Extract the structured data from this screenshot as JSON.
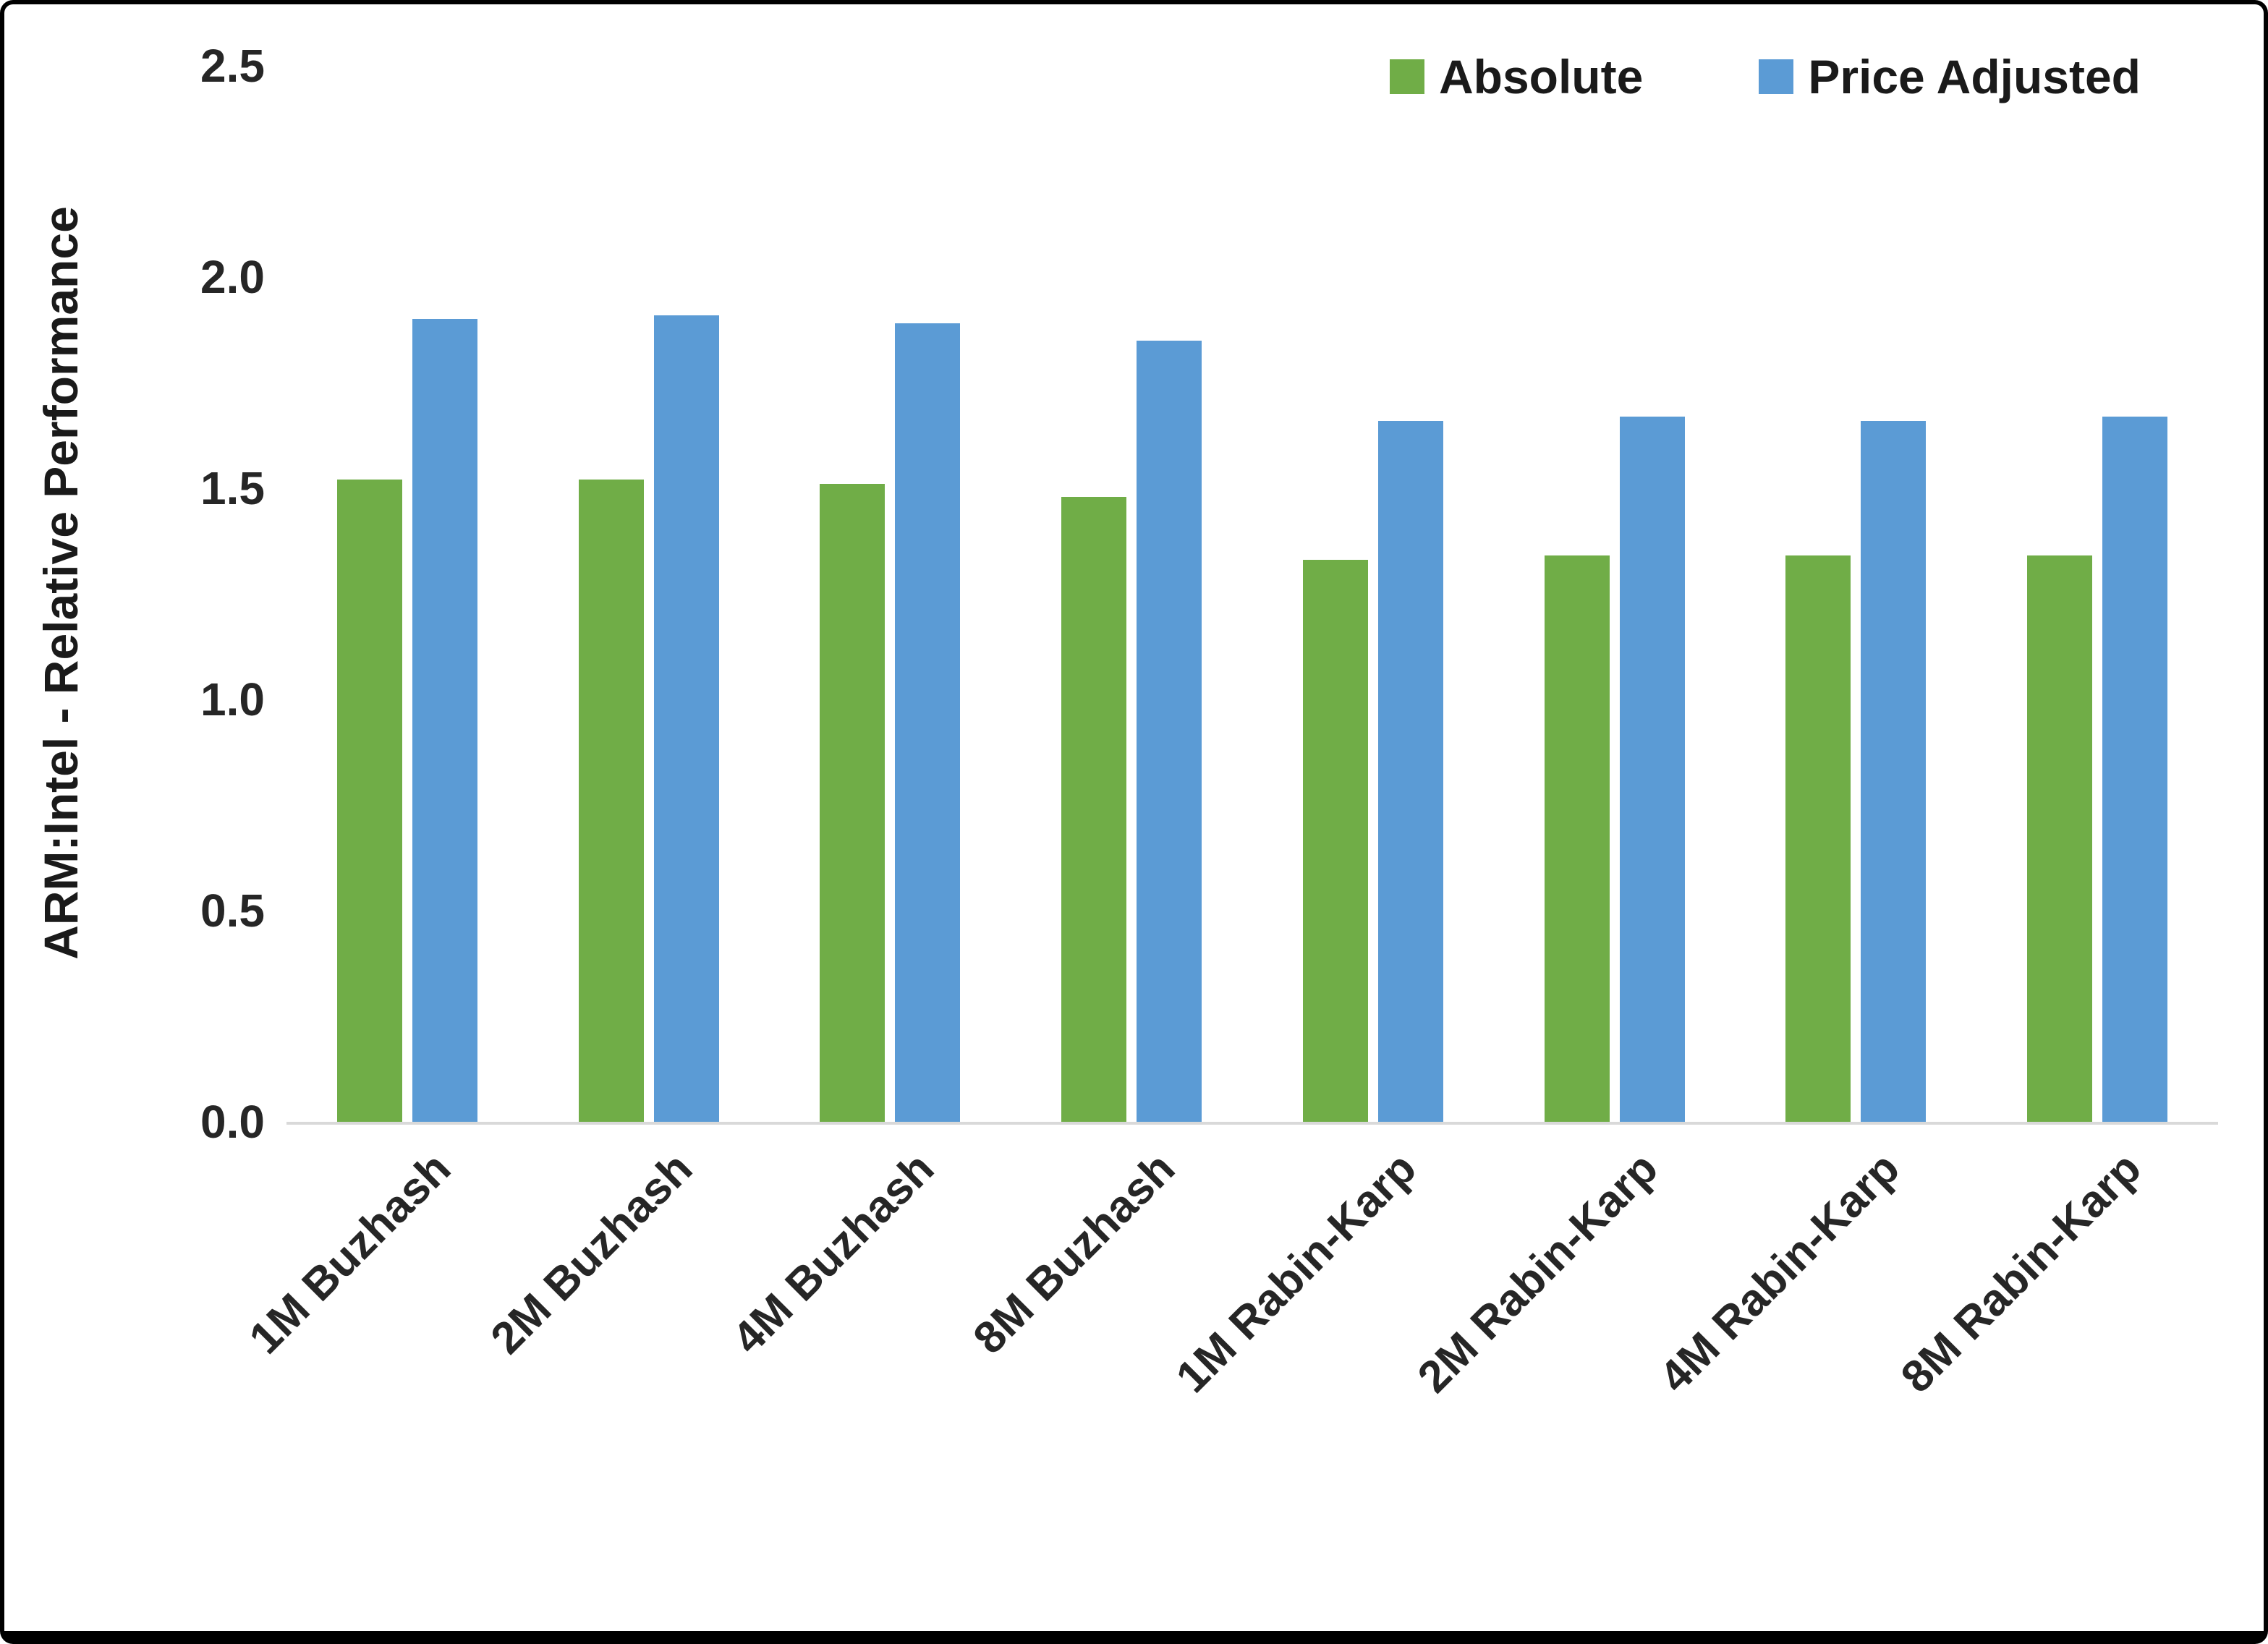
{
  "figure": {
    "background": "#ffffff",
    "border_color": "#000000"
  },
  "chart_data": {
    "type": "bar",
    "title": "",
    "xlabel": "",
    "ylabel": "ARM:Intel - Relative Performance",
    "ylim": [
      0,
      2.5
    ],
    "ytick_values": [
      0,
      0.5,
      1.0,
      1.5,
      2.0,
      2.5
    ],
    "ytick_labels": [
      "0.0",
      "0.5",
      "1.0",
      "1.5",
      "2.0",
      "2.5"
    ],
    "grid": false,
    "legend_position": "top-right",
    "axis_line_color": "#d9d9d9",
    "categories": [
      "1M Buzhash",
      "2M Buzhash",
      "4M Buzhash",
      "8M Buzhash",
      "1M Rabin-Karp",
      "2M Rabin-Karp",
      "4M Rabin-Karp",
      "8M Rabin-Karp"
    ],
    "series": [
      {
        "name": "Absolute",
        "color": "#70AD47",
        "values": [
          1.52,
          1.52,
          1.51,
          1.48,
          1.33,
          1.34,
          1.34,
          1.34
        ]
      },
      {
        "name": "Price Adjusted",
        "color": "#5B9BD5",
        "values": [
          1.9,
          1.91,
          1.89,
          1.85,
          1.66,
          1.67,
          1.66,
          1.67
        ]
      }
    ]
  }
}
